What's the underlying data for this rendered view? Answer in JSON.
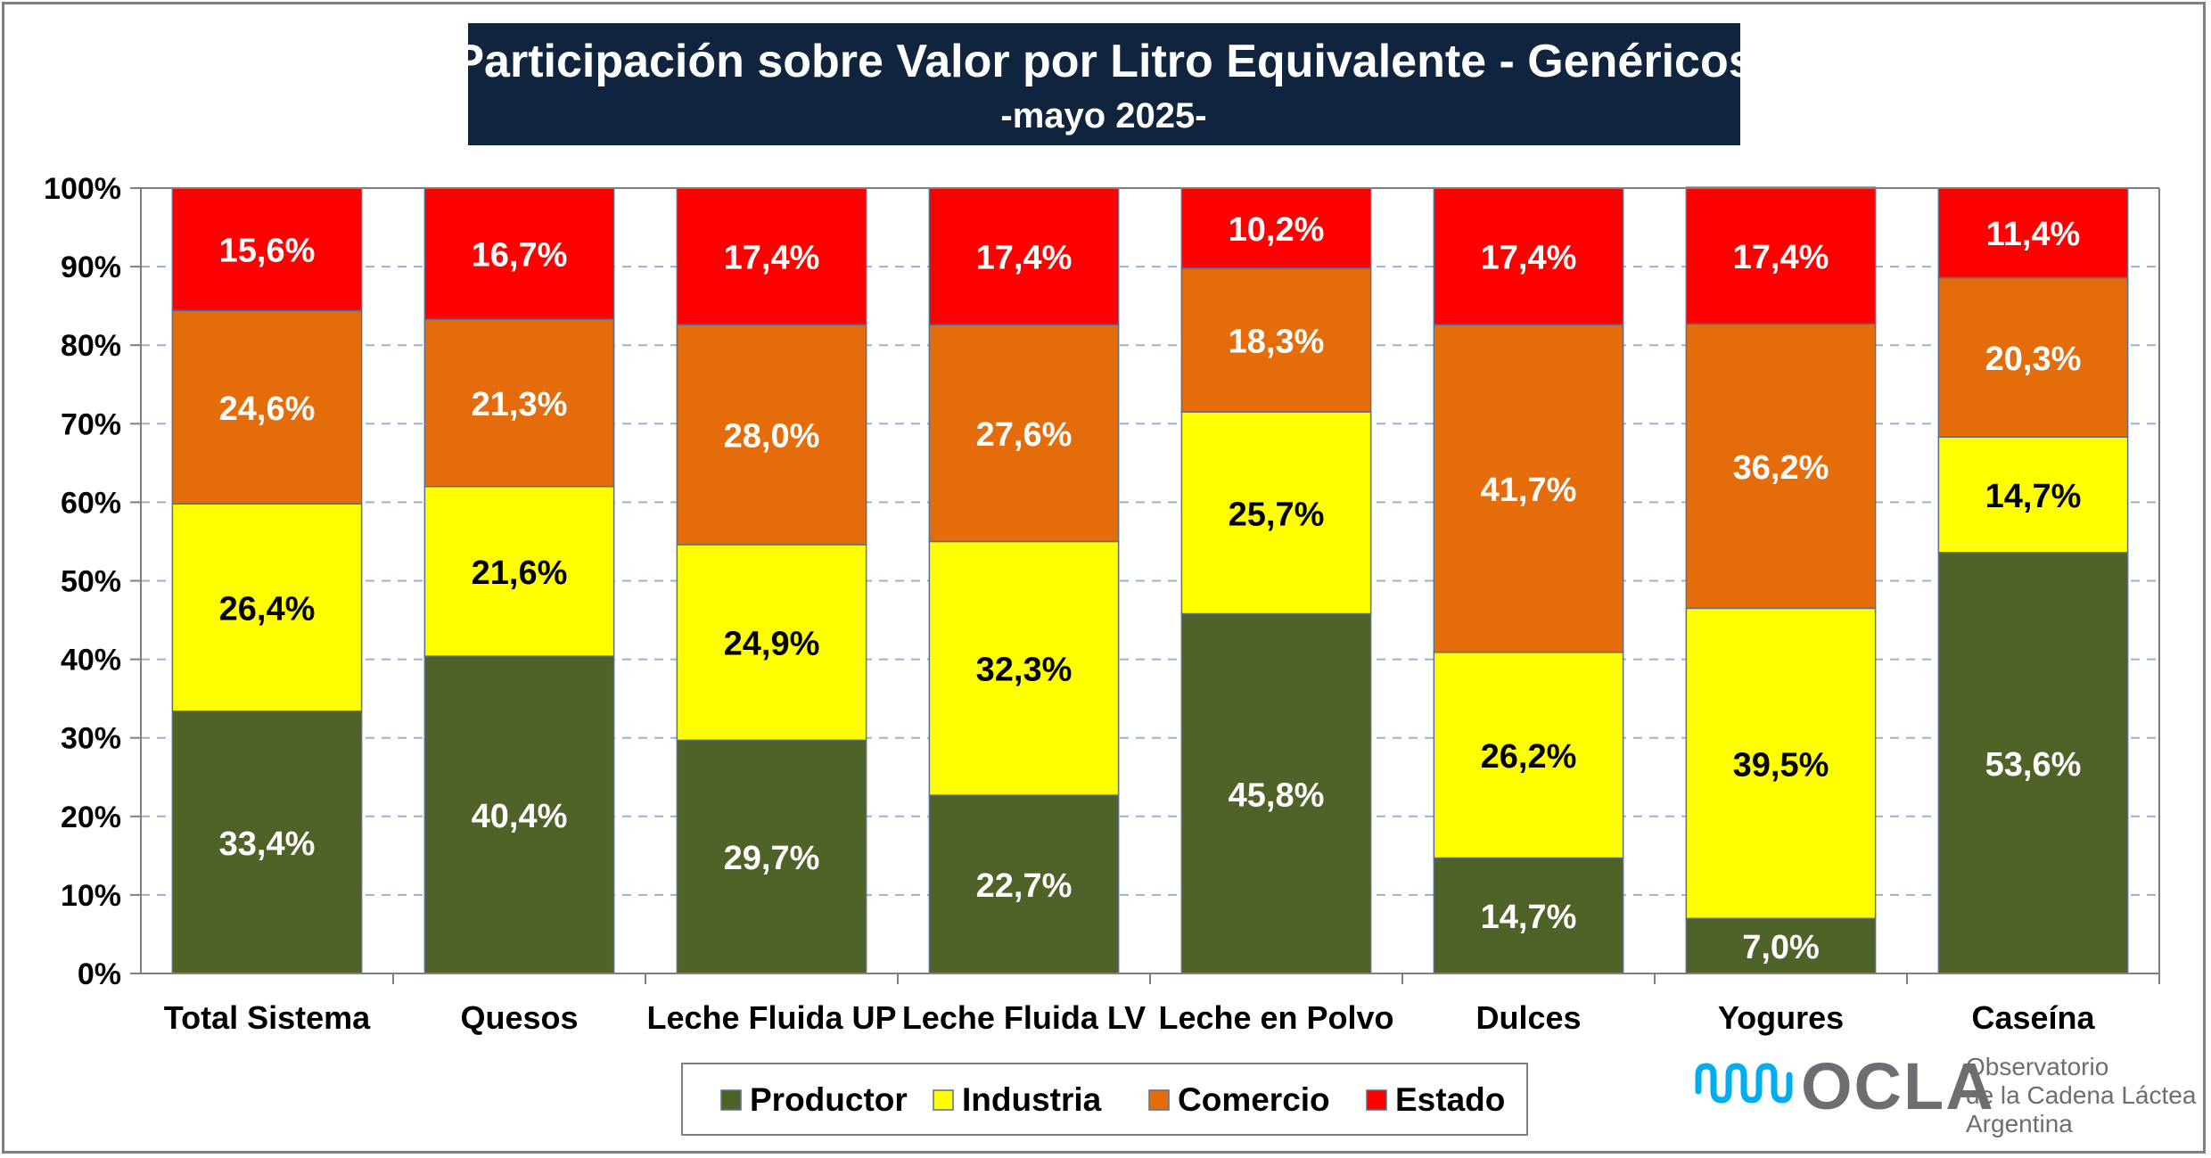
{
  "chart_data": {
    "type": "bar",
    "stacked": true,
    "title": "Participación sobre Valor por Litro Equivalente - Genéricos",
    "subtitle": "-mayo 2025-",
    "xlabel": "",
    "ylabel": "",
    "ylim": [
      0,
      100
    ],
    "yticks": [
      "0%",
      "10%",
      "20%",
      "30%",
      "40%",
      "50%",
      "60%",
      "70%",
      "80%",
      "90%",
      "100%"
    ],
    "grid": true,
    "legend_position": "bottom",
    "categories": [
      "Total Sistema",
      "Quesos",
      "Leche Fluida UP",
      "Leche Fluida LV",
      "Leche en Polvo",
      "Dulces",
      "Yogures",
      "Caseína"
    ],
    "series": [
      {
        "name": "Productor",
        "color": "#4f6228",
        "label_color": "#ffffff",
        "values": [
          33.4,
          40.4,
          29.7,
          22.7,
          45.8,
          14.7,
          7.0,
          53.6
        ],
        "labels": [
          "33,4%",
          "40,4%",
          "29,7%",
          "22,7%",
          "45,8%",
          "14,7%",
          "7,0%",
          "53,6%"
        ]
      },
      {
        "name": "Industria",
        "color": "#ffff00",
        "label_color": "#000000",
        "values": [
          26.4,
          21.6,
          24.9,
          32.3,
          25.7,
          26.2,
          39.5,
          14.7
        ],
        "labels": [
          "26,4%",
          "21,6%",
          "24,9%",
          "32,3%",
          "25,7%",
          "26,2%",
          "39,5%",
          "14,7%"
        ]
      },
      {
        "name": "Comercio",
        "color": "#e46c0a",
        "label_color": "#ffffff",
        "values": [
          24.6,
          21.3,
          28.0,
          27.6,
          18.3,
          41.7,
          36.2,
          20.3
        ],
        "labels": [
          "24,6%",
          "21,3%",
          "28,0%",
          "27,6%",
          "18,3%",
          "41,7%",
          "36,2%",
          "20,3%"
        ]
      },
      {
        "name": "Estado",
        "color": "#ff0000",
        "label_color": "#ffffff",
        "values": [
          15.6,
          16.7,
          17.4,
          17.4,
          10.2,
          17.4,
          17.4,
          11.4
        ],
        "labels": [
          "15,6%",
          "16,7%",
          "17,4%",
          "17,4%",
          "10,2%",
          "17,4%",
          "17,4%",
          "11,4%"
        ]
      }
    ]
  },
  "colors": {
    "title_bg": "#10243e",
    "gridline": "#95b3d7",
    "axis": "#7f7f7f",
    "frame": "#7f7f7f"
  },
  "logo": {
    "icon": "ocla-wave-icon",
    "word": "OCLA",
    "line1": "Observatorio",
    "line2": "de la Cadena Láctea",
    "line3": "Argentina"
  }
}
